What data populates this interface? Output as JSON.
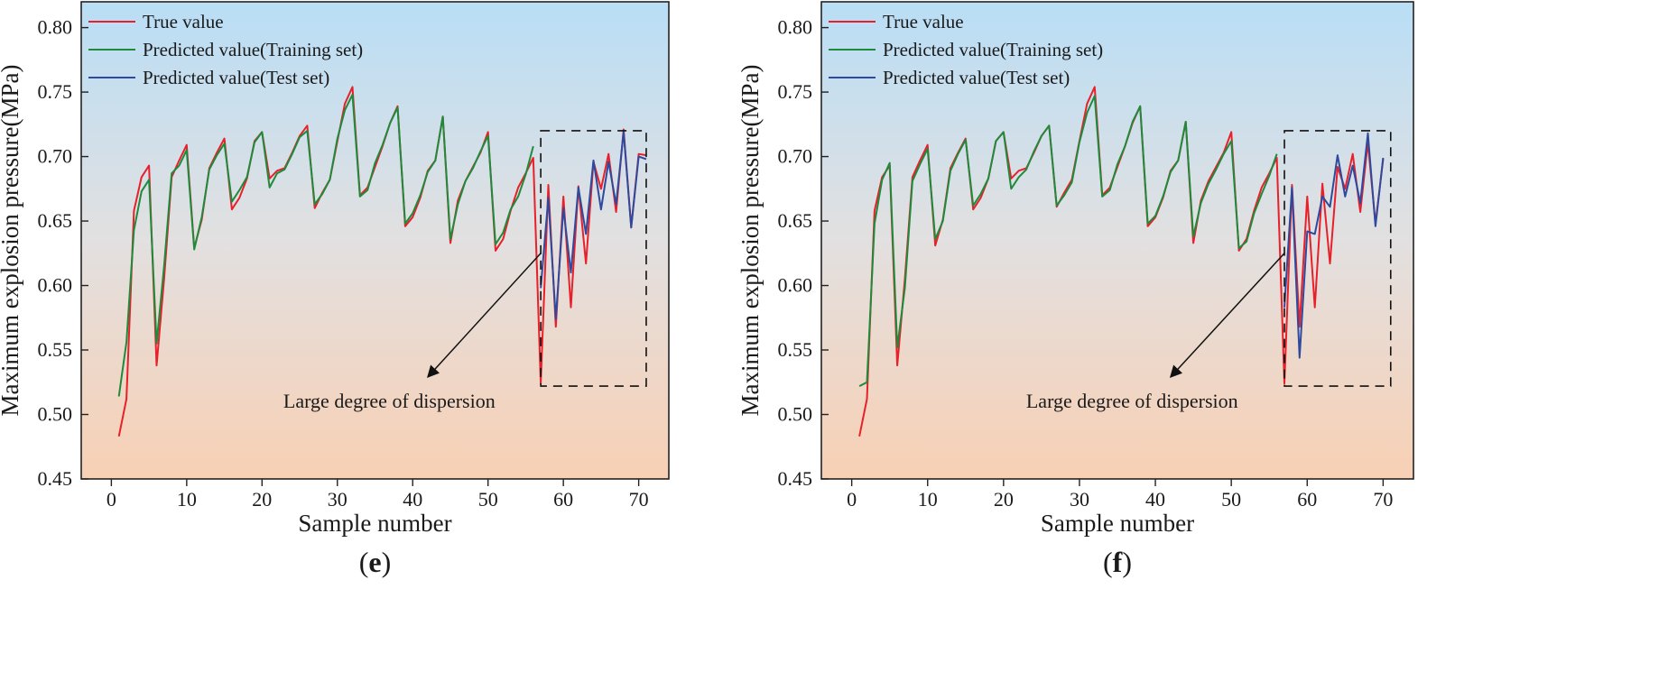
{
  "chart_data": [
    {
      "type": "line",
      "panel_label_open": "(",
      "panel_label": "e",
      "panel_label_close": ")",
      "xlabel": "Sample number",
      "ylabel": "Maximum explosion pressure(MPa)",
      "xlim": [
        -4,
        74
      ],
      "ylim": [
        0.45,
        0.82
      ],
      "xticks": [
        "0",
        "10",
        "20",
        "30",
        "40",
        "50",
        "60",
        "70"
      ],
      "yticks": [
        "0.45",
        "0.50",
        "0.55",
        "0.60",
        "0.65",
        "0.70",
        "0.75",
        "0.80"
      ],
      "legend_position": "top-left",
      "annotation": "Large degree of dispersion",
      "highlight_box": {
        "x": [
          57,
          71
        ],
        "y": [
          0.522,
          0.72
        ]
      },
      "arrow": {
        "from": [
          57,
          0.625
        ],
        "to": [
          42,
          0.529
        ]
      },
      "colors": {
        "true": "#e8202a",
        "train": "#1f8a3c",
        "test": "#2e4a9e"
      },
      "series": [
        {
          "name": "True value",
          "key": "true",
          "x": [
            1,
            2,
            3,
            4,
            5,
            6,
            7,
            8,
            9,
            10,
            11,
            12,
            13,
            14,
            15,
            16,
            17,
            18,
            19,
            20,
            21,
            22,
            23,
            24,
            25,
            26,
            27,
            28,
            29,
            30,
            31,
            32,
            33,
            34,
            35,
            36,
            37,
            38,
            39,
            40,
            41,
            42,
            43,
            44,
            45,
            46,
            47,
            48,
            49,
            50,
            51,
            52,
            53,
            54,
            55,
            56,
            57,
            58,
            59,
            60,
            61,
            62,
            63,
            64,
            65,
            66,
            67,
            68,
            69,
            70,
            71
          ],
          "values": [
            0.483,
            0.512,
            0.658,
            0.684,
            0.693,
            0.538,
            0.605,
            0.684,
            0.697,
            0.709,
            0.629,
            0.651,
            0.691,
            0.703,
            0.714,
            0.659,
            0.668,
            0.683,
            0.712,
            0.719,
            0.683,
            0.689,
            0.691,
            0.703,
            0.716,
            0.724,
            0.66,
            0.672,
            0.682,
            0.712,
            0.741,
            0.754,
            0.67,
            0.676,
            0.692,
            0.708,
            0.726,
            0.739,
            0.646,
            0.653,
            0.668,
            0.689,
            0.697,
            0.731,
            0.633,
            0.666,
            0.681,
            0.692,
            0.703,
            0.719,
            0.627,
            0.636,
            0.658,
            0.676,
            0.687,
            0.699,
            0.524,
            0.678,
            0.568,
            0.669,
            0.583,
            0.677,
            0.617,
            0.696,
            0.675,
            0.702,
            0.657,
            0.721,
            0.645,
            0.702,
            0.701
          ]
        },
        {
          "name": "Predicted value(Training set)",
          "key": "train",
          "x": [
            1,
            2,
            3,
            4,
            5,
            6,
            7,
            8,
            9,
            10,
            11,
            12,
            13,
            14,
            15,
            16,
            17,
            18,
            19,
            20,
            21,
            22,
            23,
            24,
            25,
            26,
            27,
            28,
            29,
            30,
            31,
            32,
            33,
            34,
            35,
            36,
            37,
            38,
            39,
            40,
            41,
            42,
            43,
            44,
            45,
            46,
            47,
            48,
            49,
            50,
            51,
            52,
            53,
            54,
            55,
            56
          ],
          "values": [
            0.514,
            0.556,
            0.643,
            0.673,
            0.682,
            0.555,
            0.615,
            0.687,
            0.693,
            0.705,
            0.628,
            0.653,
            0.69,
            0.701,
            0.71,
            0.665,
            0.674,
            0.684,
            0.711,
            0.719,
            0.676,
            0.687,
            0.69,
            0.702,
            0.715,
            0.72,
            0.663,
            0.671,
            0.682,
            0.714,
            0.736,
            0.748,
            0.669,
            0.674,
            0.695,
            0.709,
            0.726,
            0.738,
            0.648,
            0.656,
            0.67,
            0.688,
            0.697,
            0.731,
            0.636,
            0.663,
            0.681,
            0.691,
            0.704,
            0.716,
            0.632,
            0.641,
            0.659,
            0.669,
            0.686,
            0.708
          ]
        },
        {
          "name": "Predicted value(Test set)",
          "key": "test",
          "x": [
            57,
            58,
            59,
            60,
            61,
            62,
            63,
            64,
            65,
            66,
            67,
            68,
            69,
            70,
            71
          ],
          "values": [
            0.598,
            0.668,
            0.574,
            0.66,
            0.61,
            0.676,
            0.64,
            0.697,
            0.659,
            0.696,
            0.663,
            0.719,
            0.645,
            0.7,
            0.698
          ]
        }
      ]
    },
    {
      "type": "line",
      "panel_label_open": "(",
      "panel_label": "f",
      "panel_label_close": ")",
      "xlabel": "Sample number",
      "ylabel": "Maximum explosion pressure(MPa)",
      "xlim": [
        -4,
        74
      ],
      "ylim": [
        0.45,
        0.82
      ],
      "xticks": [
        "0",
        "10",
        "20",
        "30",
        "40",
        "50",
        "60",
        "70"
      ],
      "yticks": [
        "0.45",
        "0.50",
        "0.55",
        "0.60",
        "0.65",
        "0.70",
        "0.75",
        "0.80"
      ],
      "legend_position": "top-left",
      "annotation": "Large degree of dispersion",
      "highlight_box": {
        "x": [
          57,
          71
        ],
        "y": [
          0.522,
          0.72
        ]
      },
      "arrow": {
        "from": [
          57,
          0.625
        ],
        "to": [
          42,
          0.529
        ]
      },
      "colors": {
        "true": "#e8202a",
        "train": "#1f8a3c",
        "test": "#2e4a9e"
      },
      "series": [
        {
          "name": "True value",
          "key": "true",
          "x": [
            1,
            2,
            3,
            4,
            5,
            6,
            7,
            8,
            9,
            10,
            11,
            12,
            13,
            14,
            15,
            16,
            17,
            18,
            19,
            20,
            21,
            22,
            23,
            24,
            25,
            26,
            27,
            28,
            29,
            30,
            31,
            32,
            33,
            34,
            35,
            36,
            37,
            38,
            39,
            40,
            41,
            42,
            43,
            44,
            45,
            46,
            47,
            48,
            49,
            50,
            51,
            52,
            53,
            54,
            55,
            56,
            57,
            58,
            59,
            60,
            61,
            62,
            63,
            64,
            65,
            66,
            67,
            68,
            69,
            70
          ],
          "values": [
            0.483,
            0.512,
            0.658,
            0.684,
            0.693,
            0.538,
            0.605,
            0.684,
            0.697,
            0.709,
            0.631,
            0.651,
            0.691,
            0.703,
            0.714,
            0.659,
            0.668,
            0.683,
            0.712,
            0.719,
            0.683,
            0.689,
            0.691,
            0.703,
            0.716,
            0.724,
            0.661,
            0.672,
            0.682,
            0.712,
            0.741,
            0.754,
            0.67,
            0.676,
            0.692,
            0.708,
            0.726,
            0.739,
            0.646,
            0.653,
            0.668,
            0.689,
            0.697,
            0.727,
            0.633,
            0.666,
            0.681,
            0.692,
            0.703,
            0.719,
            0.627,
            0.636,
            0.658,
            0.676,
            0.687,
            0.699,
            0.524,
            0.678,
            0.568,
            0.669,
            0.583,
            0.679,
            0.617,
            0.692,
            0.675,
            0.702,
            0.657,
            0.711,
            0.648,
            0.698
          ]
        },
        {
          "name": "Predicted value(Training set)",
          "key": "train",
          "x": [
            1,
            2,
            3,
            4,
            5,
            6,
            7,
            8,
            9,
            10,
            11,
            12,
            13,
            14,
            15,
            16,
            17,
            18,
            19,
            20,
            21,
            22,
            23,
            24,
            25,
            26,
            27,
            28,
            29,
            30,
            31,
            32,
            33,
            34,
            35,
            36,
            37,
            38,
            39,
            40,
            41,
            42,
            43,
            44,
            45,
            46,
            47,
            48,
            49,
            50,
            51,
            52,
            53,
            54,
            55,
            56
          ],
          "values": [
            0.522,
            0.525,
            0.648,
            0.682,
            0.695,
            0.552,
            0.598,
            0.681,
            0.694,
            0.706,
            0.636,
            0.65,
            0.689,
            0.702,
            0.713,
            0.662,
            0.671,
            0.683,
            0.712,
            0.719,
            0.675,
            0.684,
            0.69,
            0.704,
            0.716,
            0.724,
            0.662,
            0.67,
            0.68,
            0.711,
            0.734,
            0.747,
            0.669,
            0.674,
            0.694,
            0.708,
            0.727,
            0.739,
            0.648,
            0.654,
            0.669,
            0.688,
            0.697,
            0.727,
            0.638,
            0.664,
            0.679,
            0.69,
            0.702,
            0.712,
            0.629,
            0.634,
            0.656,
            0.671,
            0.685,
            0.702
          ]
        },
        {
          "name": "Predicted value(Test set)",
          "key": "test",
          "x": [
            57,
            58,
            59,
            60,
            61,
            62,
            63,
            64,
            65,
            66,
            67,
            68,
            69,
            70
          ],
          "values": [
            0.583,
            0.676,
            0.544,
            0.642,
            0.64,
            0.669,
            0.661,
            0.701,
            0.669,
            0.693,
            0.664,
            0.718,
            0.646,
            0.699
          ]
        }
      ]
    }
  ]
}
